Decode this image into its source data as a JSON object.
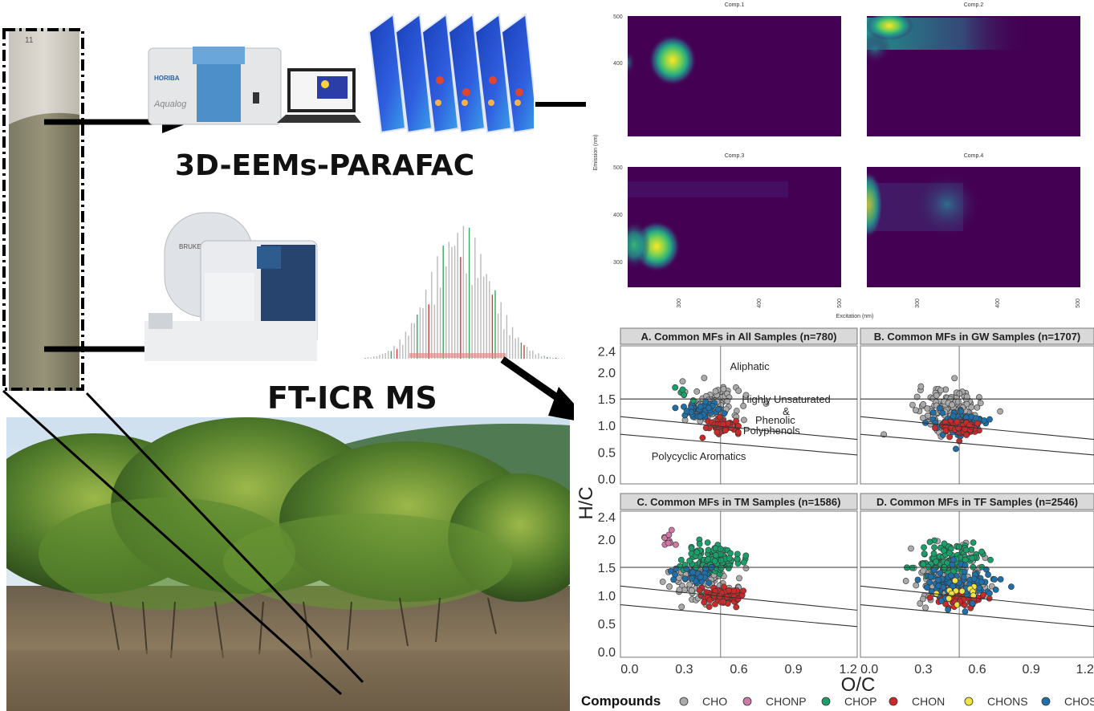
{
  "labels": {
    "eem_method": "3D-EEMs-PARAFAC",
    "ms_method": "FT-ICR MS",
    "instrument_brand": "Aqualog",
    "instrument_brand2": "HORIBA",
    "ms_brand": "BRUKER",
    "core_tag": "11"
  },
  "eem_chart": {
    "panels": [
      {
        "title": "Comp.1"
      },
      {
        "title": "Comp.2"
      },
      {
        "title": "Comp.3"
      },
      {
        "title": "Comp.4"
      }
    ],
    "y_label": "Emission (nm)",
    "x_label": "Excitation (nm)",
    "y_ticks": [
      "500",
      "400",
      "300"
    ],
    "x_ticks": [
      "300",
      "400",
      "500"
    ]
  },
  "chart_data": {
    "type": "scatter",
    "panels": [
      {
        "title": "A. Common MFs in All Samples (n=780)"
      },
      {
        "title": "B. Common MFs in GW Samples (n=1707)"
      },
      {
        "title": "C. Common MFs in TM Samples (n=1586)"
      },
      {
        "title": "D. Common MFs in TF Samples (n=2546)"
      }
    ],
    "xlabel": "O/C",
    "ylabel": "H/C",
    "xlim": [
      -0.05,
      1.25
    ],
    "ylim": [
      -0.1,
      2.5
    ],
    "x_ticks": [
      "0.0",
      "0.3",
      "0.6",
      "0.9",
      "1.2"
    ],
    "y_ticks": [
      "0.0",
      "0.5",
      "1.0",
      "1.5",
      "2.0",
      "2.4"
    ],
    "region_labels": [
      "Aliphatic",
      "Highly Unsaturated",
      "&",
      "Phenolic",
      "Polyphenols",
      "Polycyclic Aromatics"
    ],
    "boundary_lines": [
      {
        "name": "aliphatic",
        "y_at_0": 1.5,
        "y_at_1": 1.5
      },
      {
        "name": "aromaticity index 0.5",
        "y_at_0": 1.15,
        "y_at_1": 0.82
      },
      {
        "name": "aromaticity index 0.67",
        "y_at_0": 0.82,
        "y_at_1": 0.52
      }
    ],
    "legend_title": "Compounds",
    "legend_position": "bottom",
    "series": [
      {
        "name": "CHO",
        "color": "#aaaaaa"
      },
      {
        "name": "CHONP",
        "color": "#cc79a7"
      },
      {
        "name": "CHOP",
        "color": "#1b9e6a"
      },
      {
        "name": "CHON",
        "color": "#cc2a2a"
      },
      {
        "name": "CHONS",
        "color": "#f0e442"
      },
      {
        "name": "CHOS",
        "color": "#1f6fa8"
      }
    ],
    "clusters": [
      {
        "panel": 0,
        "series": "CHO",
        "center": [
          0.45,
          1.35
        ],
        "spread": [
          0.14,
          0.3
        ],
        "count": 120
      },
      {
        "panel": 0,
        "series": "CHOS",
        "center": [
          0.4,
          1.3
        ],
        "spread": [
          0.12,
          0.15
        ],
        "count": 45
      },
      {
        "panel": 0,
        "series": "CHON",
        "center": [
          0.52,
          1.0
        ],
        "spread": [
          0.08,
          0.12
        ],
        "count": 50
      },
      {
        "panel": 0,
        "series": "CHOP",
        "center": [
          0.3,
          1.6
        ],
        "spread": [
          0.05,
          0.1
        ],
        "count": 5
      },
      {
        "panel": 1,
        "series": "CHO",
        "center": [
          0.45,
          1.3
        ],
        "spread": [
          0.16,
          0.35
        ],
        "count": 140
      },
      {
        "panel": 1,
        "series": "CHOS",
        "center": [
          0.5,
          1.05
        ],
        "spread": [
          0.15,
          0.22
        ],
        "count": 70
      },
      {
        "panel": 1,
        "series": "CHON",
        "center": [
          0.5,
          0.95
        ],
        "spread": [
          0.1,
          0.14
        ],
        "count": 70
      },
      {
        "panel": 2,
        "series": "CHO",
        "center": [
          0.4,
          1.3
        ],
        "spread": [
          0.16,
          0.35
        ],
        "count": 110
      },
      {
        "panel": 2,
        "series": "CHOP",
        "center": [
          0.45,
          1.65
        ],
        "spread": [
          0.13,
          0.22
        ],
        "count": 120
      },
      {
        "panel": 2,
        "series": "CHON",
        "center": [
          0.5,
          1.0
        ],
        "spread": [
          0.1,
          0.14
        ],
        "count": 70
      },
      {
        "panel": 2,
        "series": "CHOS",
        "center": [
          0.35,
          1.35
        ],
        "spread": [
          0.1,
          0.15
        ],
        "count": 30
      },
      {
        "panel": 2,
        "series": "CHONP",
        "center": [
          0.22,
          1.95
        ],
        "spread": [
          0.04,
          0.15
        ],
        "count": 10
      },
      {
        "panel": 3,
        "series": "CHO",
        "center": [
          0.45,
          1.3
        ],
        "spread": [
          0.2,
          0.4
        ],
        "count": 130
      },
      {
        "panel": 3,
        "series": "CHOP",
        "center": [
          0.45,
          1.65
        ],
        "spread": [
          0.15,
          0.25
        ],
        "count": 110
      },
      {
        "panel": 3,
        "series": "CHON",
        "center": [
          0.5,
          0.95
        ],
        "spread": [
          0.12,
          0.14
        ],
        "count": 70
      },
      {
        "panel": 3,
        "series": "CHOS",
        "center": [
          0.5,
          1.2
        ],
        "spread": [
          0.18,
          0.28
        ],
        "count": 90
      },
      {
        "panel": 3,
        "series": "CHONS",
        "center": [
          0.5,
          1.05
        ],
        "spread": [
          0.12,
          0.18
        ],
        "count": 12
      }
    ]
  },
  "colors": {
    "viridis_bg": "#440154",
    "arrow": "#000000",
    "strip_bg": "#d9d9d9"
  }
}
